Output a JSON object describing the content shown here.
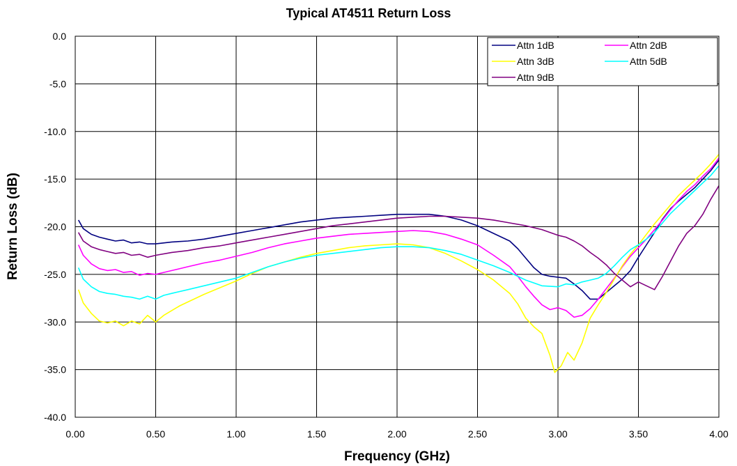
{
  "chart_data": {
    "type": "line",
    "title": "Typical AT4511 Return Loss",
    "xlabel": "Frequency (GHz)",
    "ylabel": "Return Loss (dB)",
    "xlim": [
      0,
      4
    ],
    "ylim": [
      -40,
      0
    ],
    "x_ticks": [
      "0.00",
      "0.50",
      "1.00",
      "1.50",
      "2.00",
      "2.50",
      "3.00",
      "3.50",
      "4.00"
    ],
    "y_ticks": [
      "0.0",
      "-5.0",
      "-10.0",
      "-15.0",
      "-20.0",
      "-25.0",
      "-30.0",
      "-35.0",
      "-40.0"
    ],
    "grid": true,
    "legend_position": "top-right",
    "series": [
      {
        "name": "Attn 1dB",
        "color": "#000080",
        "points": [
          [
            0.02,
            -19.3
          ],
          [
            0.05,
            -20.2
          ],
          [
            0.1,
            -20.8
          ],
          [
            0.15,
            -21.1
          ],
          [
            0.2,
            -21.3
          ],
          [
            0.25,
            -21.5
          ],
          [
            0.3,
            -21.4
          ],
          [
            0.35,
            -21.7
          ],
          [
            0.4,
            -21.6
          ],
          [
            0.45,
            -21.8
          ],
          [
            0.5,
            -21.8
          ],
          [
            0.6,
            -21.6
          ],
          [
            0.7,
            -21.5
          ],
          [
            0.8,
            -21.3
          ],
          [
            0.9,
            -21.0
          ],
          [
            1.0,
            -20.7
          ],
          [
            1.1,
            -20.4
          ],
          [
            1.2,
            -20.1
          ],
          [
            1.3,
            -19.8
          ],
          [
            1.4,
            -19.5
          ],
          [
            1.5,
            -19.3
          ],
          [
            1.6,
            -19.1
          ],
          [
            1.7,
            -19.0
          ],
          [
            1.8,
            -18.9
          ],
          [
            1.9,
            -18.8
          ],
          [
            2.0,
            -18.7
          ],
          [
            2.1,
            -18.7
          ],
          [
            2.2,
            -18.7
          ],
          [
            2.3,
            -18.9
          ],
          [
            2.4,
            -19.3
          ],
          [
            2.5,
            -19.9
          ],
          [
            2.6,
            -20.7
          ],
          [
            2.7,
            -21.5
          ],
          [
            2.75,
            -22.3
          ],
          [
            2.8,
            -23.3
          ],
          [
            2.85,
            -24.3
          ],
          [
            2.9,
            -25.0
          ],
          [
            2.95,
            -25.2
          ],
          [
            3.0,
            -25.3
          ],
          [
            3.05,
            -25.4
          ],
          [
            3.1,
            -26.0
          ],
          [
            3.15,
            -26.7
          ],
          [
            3.2,
            -27.6
          ],
          [
            3.25,
            -27.6
          ],
          [
            3.3,
            -26.9
          ],
          [
            3.35,
            -26.2
          ],
          [
            3.4,
            -25.5
          ],
          [
            3.45,
            -24.6
          ],
          [
            3.5,
            -23.2
          ],
          [
            3.55,
            -21.9
          ],
          [
            3.6,
            -20.6
          ],
          [
            3.65,
            -19.2
          ],
          [
            3.7,
            -18.1
          ],
          [
            3.75,
            -17.3
          ],
          [
            3.8,
            -16.6
          ],
          [
            3.85,
            -15.9
          ],
          [
            3.9,
            -15.0
          ],
          [
            3.95,
            -14.1
          ],
          [
            4.0,
            -13.0
          ]
        ]
      },
      {
        "name": "Attn 2dB",
        "color": "#ff00ff",
        "points": [
          [
            0.02,
            -21.9
          ],
          [
            0.05,
            -23.0
          ],
          [
            0.1,
            -23.9
          ],
          [
            0.15,
            -24.4
          ],
          [
            0.2,
            -24.6
          ],
          [
            0.25,
            -24.5
          ],
          [
            0.3,
            -24.8
          ],
          [
            0.35,
            -24.7
          ],
          [
            0.4,
            -25.1
          ],
          [
            0.45,
            -24.9
          ],
          [
            0.5,
            -25.0
          ],
          [
            0.6,
            -24.6
          ],
          [
            0.7,
            -24.2
          ],
          [
            0.8,
            -23.8
          ],
          [
            0.9,
            -23.5
          ],
          [
            1.0,
            -23.1
          ],
          [
            1.1,
            -22.7
          ],
          [
            1.2,
            -22.2
          ],
          [
            1.3,
            -21.8
          ],
          [
            1.4,
            -21.5
          ],
          [
            1.5,
            -21.2
          ],
          [
            1.6,
            -21.0
          ],
          [
            1.7,
            -20.8
          ],
          [
            1.8,
            -20.7
          ],
          [
            1.9,
            -20.6
          ],
          [
            2.0,
            -20.5
          ],
          [
            2.1,
            -20.4
          ],
          [
            2.2,
            -20.5
          ],
          [
            2.3,
            -20.8
          ],
          [
            2.4,
            -21.3
          ],
          [
            2.5,
            -21.9
          ],
          [
            2.6,
            -23.0
          ],
          [
            2.7,
            -24.2
          ],
          [
            2.75,
            -25.2
          ],
          [
            2.8,
            -26.3
          ],
          [
            2.85,
            -27.3
          ],
          [
            2.9,
            -28.2
          ],
          [
            2.95,
            -28.7
          ],
          [
            3.0,
            -28.5
          ],
          [
            3.05,
            -28.8
          ],
          [
            3.1,
            -29.5
          ],
          [
            3.15,
            -29.3
          ],
          [
            3.2,
            -28.6
          ],
          [
            3.25,
            -27.6
          ],
          [
            3.3,
            -26.5
          ],
          [
            3.35,
            -25.4
          ],
          [
            3.4,
            -24.2
          ],
          [
            3.45,
            -23.1
          ],
          [
            3.5,
            -22.2
          ],
          [
            3.55,
            -21.3
          ],
          [
            3.6,
            -20.3
          ],
          [
            3.65,
            -19.3
          ],
          [
            3.7,
            -18.2
          ],
          [
            3.75,
            -17.2
          ],
          [
            3.8,
            -16.3
          ],
          [
            3.85,
            -15.6
          ],
          [
            3.9,
            -14.7
          ],
          [
            3.95,
            -13.9
          ],
          [
            4.0,
            -12.8
          ]
        ]
      },
      {
        "name": "Attn 3dB",
        "color": "#ffff00",
        "points": [
          [
            0.02,
            -26.6
          ],
          [
            0.05,
            -28.0
          ],
          [
            0.1,
            -29.1
          ],
          [
            0.15,
            -29.9
          ],
          [
            0.2,
            -30.1
          ],
          [
            0.25,
            -29.9
          ],
          [
            0.3,
            -30.4
          ],
          [
            0.35,
            -29.9
          ],
          [
            0.4,
            -30.2
          ],
          [
            0.45,
            -29.3
          ],
          [
            0.5,
            -30.0
          ],
          [
            0.55,
            -29.3
          ],
          [
            0.6,
            -28.8
          ],
          [
            0.65,
            -28.3
          ],
          [
            0.7,
            -27.9
          ],
          [
            0.8,
            -27.1
          ],
          [
            0.9,
            -26.4
          ],
          [
            1.0,
            -25.7
          ],
          [
            1.1,
            -24.9
          ],
          [
            1.2,
            -24.2
          ],
          [
            1.3,
            -23.7
          ],
          [
            1.4,
            -23.2
          ],
          [
            1.5,
            -22.8
          ],
          [
            1.6,
            -22.5
          ],
          [
            1.7,
            -22.2
          ],
          [
            1.8,
            -22.0
          ],
          [
            1.9,
            -21.9
          ],
          [
            2.0,
            -21.8
          ],
          [
            2.1,
            -21.9
          ],
          [
            2.2,
            -22.2
          ],
          [
            2.3,
            -22.8
          ],
          [
            2.4,
            -23.6
          ],
          [
            2.5,
            -24.5
          ],
          [
            2.6,
            -25.6
          ],
          [
            2.7,
            -27.0
          ],
          [
            2.75,
            -28.1
          ],
          [
            2.8,
            -29.6
          ],
          [
            2.85,
            -30.5
          ],
          [
            2.9,
            -31.2
          ],
          [
            2.95,
            -33.5
          ],
          [
            2.98,
            -35.3
          ],
          [
            3.02,
            -34.6
          ],
          [
            3.06,
            -33.2
          ],
          [
            3.1,
            -34.0
          ],
          [
            3.15,
            -32.2
          ],
          [
            3.2,
            -29.6
          ],
          [
            3.25,
            -28.2
          ],
          [
            3.3,
            -26.9
          ],
          [
            3.35,
            -25.5
          ],
          [
            3.4,
            -24.1
          ],
          [
            3.45,
            -22.9
          ],
          [
            3.5,
            -21.9
          ],
          [
            3.55,
            -20.8
          ],
          [
            3.6,
            -19.7
          ],
          [
            3.65,
            -18.7
          ],
          [
            3.7,
            -17.7
          ],
          [
            3.75,
            -16.7
          ],
          [
            3.8,
            -15.9
          ],
          [
            3.85,
            -15.1
          ],
          [
            3.9,
            -14.3
          ],
          [
            3.95,
            -13.4
          ],
          [
            4.0,
            -12.4
          ]
        ]
      },
      {
        "name": "Attn 5dB",
        "color": "#00ffff",
        "points": [
          [
            0.02,
            -24.3
          ],
          [
            0.05,
            -25.5
          ],
          [
            0.1,
            -26.3
          ],
          [
            0.15,
            -26.8
          ],
          [
            0.2,
            -27.0
          ],
          [
            0.25,
            -27.1
          ],
          [
            0.3,
            -27.3
          ],
          [
            0.35,
            -27.4
          ],
          [
            0.4,
            -27.6
          ],
          [
            0.45,
            -27.3
          ],
          [
            0.5,
            -27.6
          ],
          [
            0.55,
            -27.2
          ],
          [
            0.6,
            -27.0
          ],
          [
            0.7,
            -26.6
          ],
          [
            0.8,
            -26.2
          ],
          [
            0.9,
            -25.8
          ],
          [
            1.0,
            -25.4
          ],
          [
            1.1,
            -24.8
          ],
          [
            1.2,
            -24.2
          ],
          [
            1.3,
            -23.7
          ],
          [
            1.4,
            -23.3
          ],
          [
            1.5,
            -23.0
          ],
          [
            1.6,
            -22.8
          ],
          [
            1.7,
            -22.6
          ],
          [
            1.8,
            -22.4
          ],
          [
            1.9,
            -22.2
          ],
          [
            2.0,
            -22.1
          ],
          [
            2.1,
            -22.1
          ],
          [
            2.2,
            -22.2
          ],
          [
            2.3,
            -22.5
          ],
          [
            2.4,
            -22.9
          ],
          [
            2.5,
            -23.5
          ],
          [
            2.6,
            -24.1
          ],
          [
            2.7,
            -24.8
          ],
          [
            2.8,
            -25.6
          ],
          [
            2.9,
            -26.2
          ],
          [
            3.0,
            -26.3
          ],
          [
            3.05,
            -26.0
          ],
          [
            3.1,
            -26.1
          ],
          [
            3.15,
            -25.8
          ],
          [
            3.2,
            -25.6
          ],
          [
            3.25,
            -25.4
          ],
          [
            3.3,
            -24.9
          ],
          [
            3.35,
            -24.1
          ],
          [
            3.4,
            -23.2
          ],
          [
            3.45,
            -22.4
          ],
          [
            3.5,
            -21.9
          ],
          [
            3.55,
            -21.3
          ],
          [
            3.6,
            -20.6
          ],
          [
            3.65,
            -19.6
          ],
          [
            3.7,
            -18.6
          ],
          [
            3.75,
            -17.8
          ],
          [
            3.8,
            -17.0
          ],
          [
            3.85,
            -16.2
          ],
          [
            3.9,
            -15.4
          ],
          [
            3.95,
            -14.6
          ],
          [
            4.0,
            -13.6
          ]
        ]
      },
      {
        "name": "Attn 9dB",
        "color": "#800080",
        "points": [
          [
            0.02,
            -20.6
          ],
          [
            0.05,
            -21.5
          ],
          [
            0.1,
            -22.1
          ],
          [
            0.15,
            -22.4
          ],
          [
            0.2,
            -22.6
          ],
          [
            0.25,
            -22.8
          ],
          [
            0.3,
            -22.7
          ],
          [
            0.35,
            -23.0
          ],
          [
            0.4,
            -22.9
          ],
          [
            0.45,
            -23.2
          ],
          [
            0.5,
            -23.0
          ],
          [
            0.6,
            -22.7
          ],
          [
            0.7,
            -22.5
          ],
          [
            0.8,
            -22.2
          ],
          [
            0.9,
            -22.0
          ],
          [
            1.0,
            -21.7
          ],
          [
            1.1,
            -21.4
          ],
          [
            1.2,
            -21.1
          ],
          [
            1.3,
            -20.8
          ],
          [
            1.4,
            -20.5
          ],
          [
            1.5,
            -20.2
          ],
          [
            1.6,
            -19.9
          ],
          [
            1.7,
            -19.7
          ],
          [
            1.8,
            -19.5
          ],
          [
            1.9,
            -19.3
          ],
          [
            2.0,
            -19.1
          ],
          [
            2.1,
            -19.0
          ],
          [
            2.2,
            -18.9
          ],
          [
            2.3,
            -18.9
          ],
          [
            2.4,
            -19.0
          ],
          [
            2.5,
            -19.1
          ],
          [
            2.6,
            -19.3
          ],
          [
            2.7,
            -19.6
          ],
          [
            2.8,
            -19.9
          ],
          [
            2.9,
            -20.3
          ],
          [
            3.0,
            -20.9
          ],
          [
            3.05,
            -21.1
          ],
          [
            3.1,
            -21.5
          ],
          [
            3.15,
            -22.0
          ],
          [
            3.2,
            -22.7
          ],
          [
            3.25,
            -23.3
          ],
          [
            3.3,
            -24.0
          ],
          [
            3.35,
            -24.9
          ],
          [
            3.4,
            -25.6
          ],
          [
            3.45,
            -26.3
          ],
          [
            3.5,
            -25.8
          ],
          [
            3.55,
            -26.2
          ],
          [
            3.6,
            -26.6
          ],
          [
            3.65,
            -25.2
          ],
          [
            3.7,
            -23.6
          ],
          [
            3.75,
            -22.0
          ],
          [
            3.8,
            -20.7
          ],
          [
            3.85,
            -19.9
          ],
          [
            3.9,
            -18.7
          ],
          [
            3.95,
            -17.1
          ],
          [
            4.0,
            -15.7
          ]
        ]
      }
    ]
  }
}
